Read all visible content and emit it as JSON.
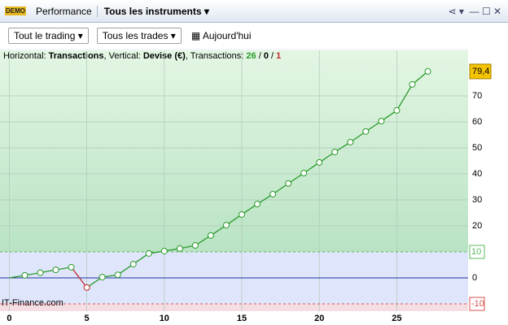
{
  "ui": {
    "badge": "DEMO",
    "tab": "Performance",
    "instrument": "Tous les instruments",
    "filter1": "Tout le trading",
    "filter2": "Tous les trades",
    "date": "Aujourd'hui",
    "footer": "IT-Finance.com",
    "info": {
      "h_label": "Horizontal:",
      "h_value": "Transactions",
      "v_label": ", Vertical:",
      "v_value": "Devise (€)",
      "t_label": ", Transactions:",
      "wins": "26",
      "sep1": " / ",
      "even": "0",
      "sep2": " / ",
      "losses": "1"
    }
  },
  "chart_data": {
    "type": "line",
    "x": [
      0,
      1,
      2,
      3,
      4,
      5,
      6,
      7,
      8,
      9,
      10,
      11,
      12,
      13,
      14,
      15,
      16,
      17,
      18,
      19,
      20,
      21,
      22,
      23,
      24,
      25,
      26,
      27
    ],
    "series": [
      {
        "color": "#2a9a2a",
        "down_color": "#c0282a",
        "values": [
          0,
          1,
          2,
          3.1,
          4.1,
          -3.7,
          0.3,
          1.2,
          5.3,
          9.4,
          10.3,
          11.3,
          12.5,
          16.3,
          20.3,
          24.4,
          28.4,
          32.2,
          36.3,
          40.3,
          44.4,
          48.4,
          52.2,
          56.3,
          60.3,
          64.4,
          74.4,
          79.4
        ]
      }
    ],
    "xlim": [
      -0.6,
      29.6
    ],
    "ylim": [
      -12.8,
      87.5
    ],
    "xticks": [
      0,
      5,
      10,
      15,
      20,
      25
    ],
    "yticks": [
      0,
      20,
      30,
      40,
      50,
      60,
      70,
      {
        "value": 79.4,
        "label": "79,4"
      }
    ],
    "thresholds": [
      {
        "value": 10,
        "color": "#5cb85c"
      },
      {
        "value": -10,
        "color": "#d9534f"
      }
    ],
    "grid": true
  }
}
